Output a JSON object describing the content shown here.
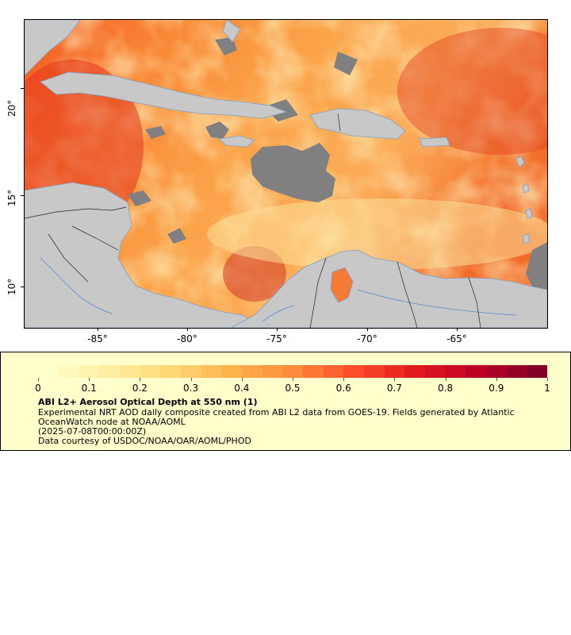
{
  "map": {
    "x_axis_ticks": [
      "-85°",
      "-80°",
      "-75°",
      "-70°",
      "-65°"
    ],
    "y_axis_ticks": [
      "20°",
      "15°",
      "10°"
    ],
    "colors": {
      "land": "#c8c8c8",
      "missing_data": "#808080",
      "borders": "#222222",
      "rivers": "#5588cc"
    }
  },
  "legend": {
    "colorbar_ticks": [
      "0",
      "0.1",
      "0.2",
      "0.3",
      "0.4",
      "0.5",
      "0.6",
      "0.7",
      "0.8",
      "0.9",
      "1"
    ],
    "colorbar_colors": [
      "#ffffcc",
      "#ffeda0",
      "#fed976",
      "#feb24c",
      "#fd8d3c",
      "#fc4e2a",
      "#e31a1c",
      "#bd0026",
      "#800026"
    ],
    "title": "ABI L2+ Aerosol Optical Depth at 550 nm (1)",
    "description": "Experimental NRT AOD daily composite created from ABI L2 data from GOES-19. Fields generated by Atlantic OceanWatch node at NOAA/AOML",
    "time": "(2025-07-08T00:00:00Z)",
    "credit": "Data courtesy of USDOC/NOAA/OAR/AOML/PHOD"
  }
}
